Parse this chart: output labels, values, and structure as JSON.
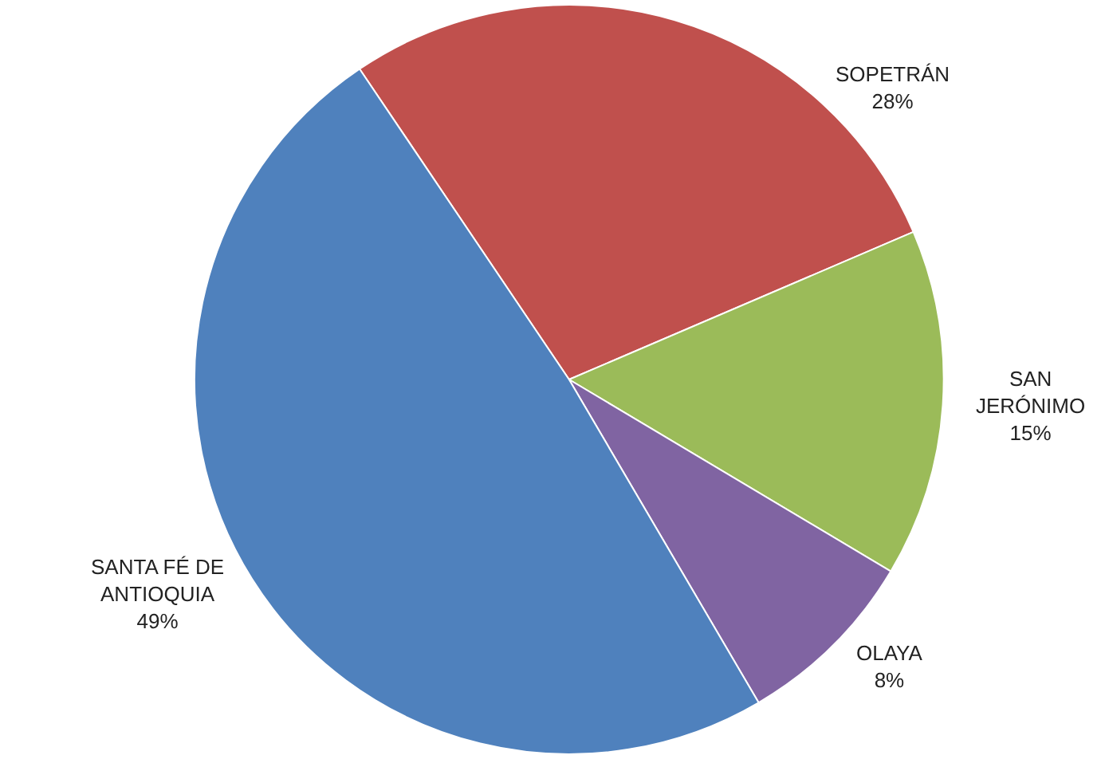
{
  "chart_data": {
    "type": "pie",
    "categories": [
      "SOPETRÁN",
      "SAN JERÓNIMO",
      "OLAYA",
      "SANTA FÉ DE ANTIOQUIA"
    ],
    "values": [
      28,
      15,
      8,
      49
    ],
    "colors": [
      "#c0504d",
      "#9bbb59",
      "#8064a2",
      "#4f81bd"
    ],
    "value_labels": [
      "28%",
      "15%",
      "8%",
      "49%"
    ],
    "legend": false
  }
}
